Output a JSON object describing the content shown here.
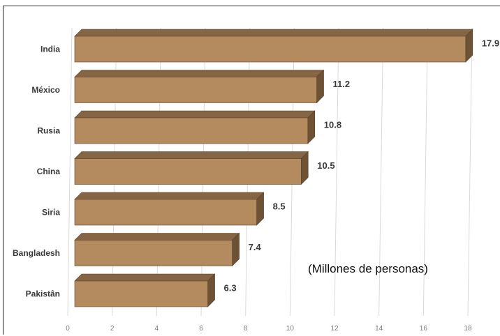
{
  "chart_data": {
    "type": "bar",
    "orientation": "horizontal",
    "style": "3d",
    "categories": [
      "India",
      "México",
      "Rusia",
      "China",
      "Siria",
      "Bangladesh",
      "Pakistân"
    ],
    "values": [
      17.9,
      11.2,
      10.8,
      10.5,
      8.5,
      7.4,
      6.3
    ],
    "value_labels": [
      "17.9",
      "11.2",
      "10.8",
      "10.5",
      "8.5",
      "7.4",
      "6.3"
    ],
    "xticks": [
      "0",
      "2",
      "4",
      "6",
      "8",
      "10",
      "12",
      "14",
      "16",
      "18"
    ],
    "xlim": [
      0,
      18
    ],
    "grid": "vertical",
    "annotation": "(Millones de personas)",
    "colors": {
      "bar_front": "#b48b5e",
      "bar_top": "#856544",
      "bar_side": "#6e5236",
      "bar_outline": "#5a4229",
      "grid": "#d9d9d9"
    }
  }
}
